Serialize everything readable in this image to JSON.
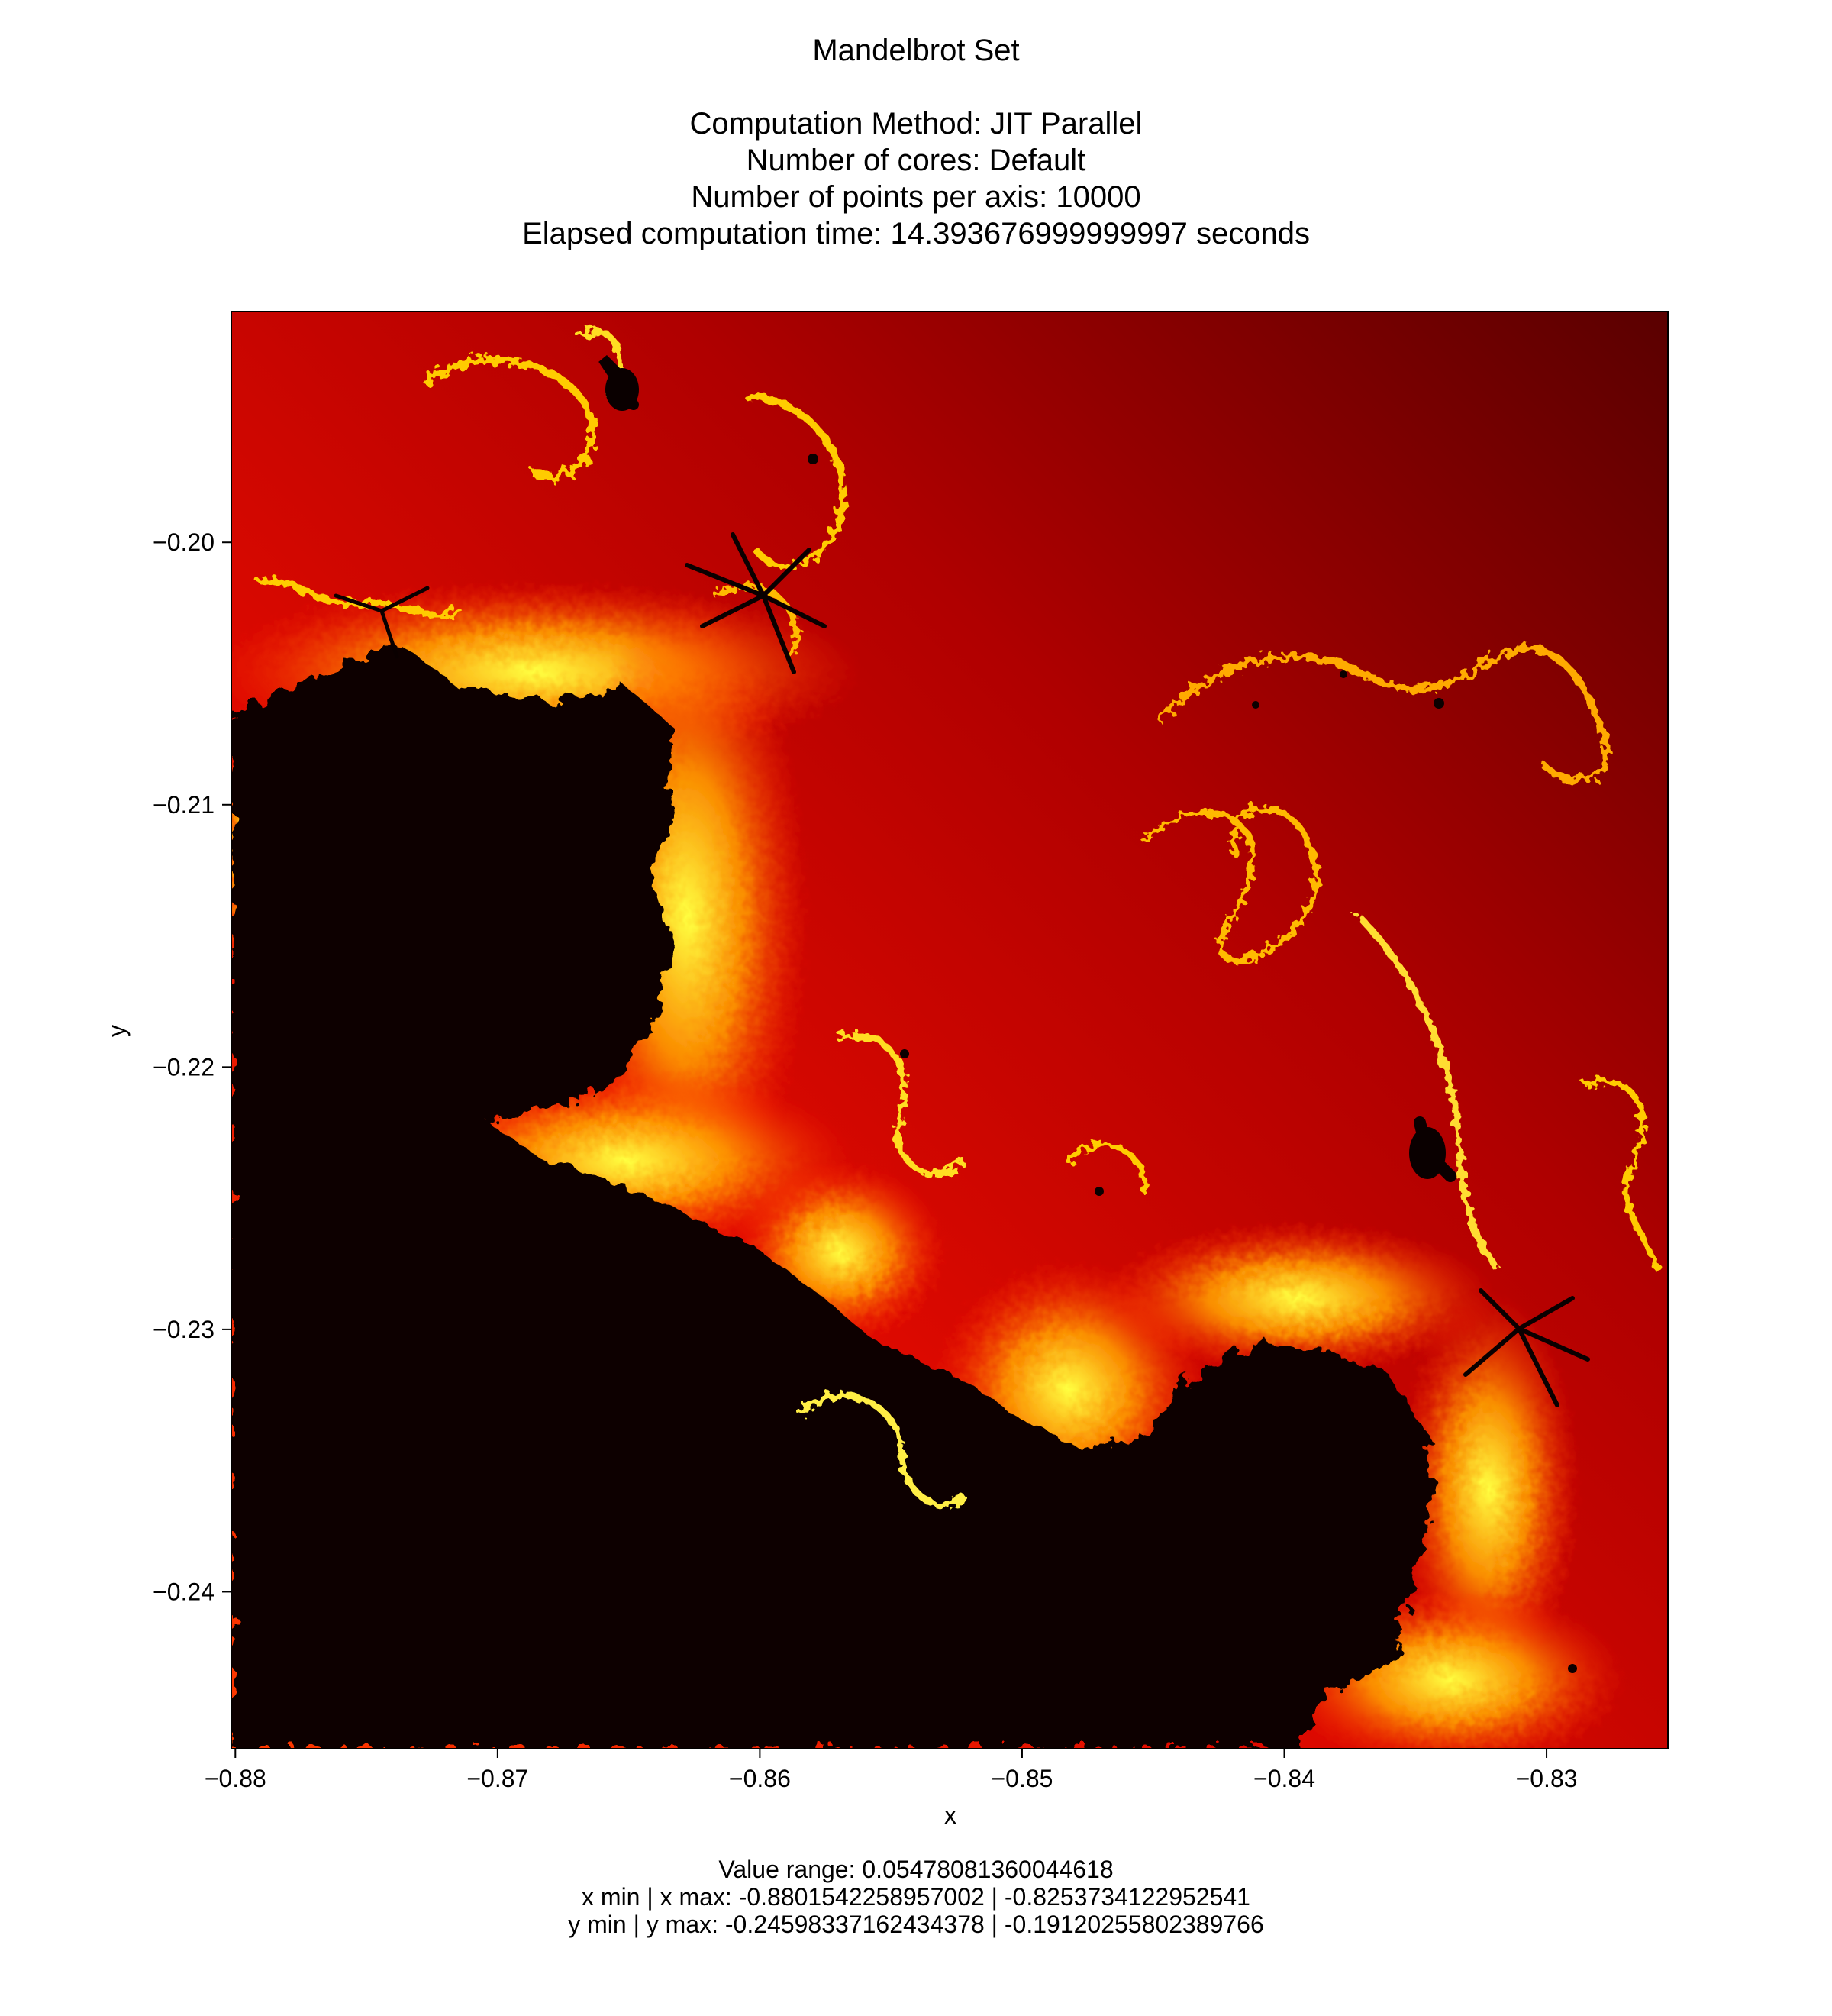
{
  "chart_data": {
    "type": "heatmap",
    "title": "Mandelbrot Set",
    "subtitle_lines": [
      "Computation Method: JIT Parallel",
      "Number of cores: Default",
      "Number of points per axis: 10000",
      "Elapsed computation time: 14.393676999999997 seconds"
    ],
    "xlabel": "x",
    "ylabel": "y",
    "xlim": [
      -0.8801542258957002,
      -0.8253734122952541
    ],
    "ylim": [
      -0.24598337162434378,
      -0.19120255802389766
    ],
    "x_ticks": [
      -0.88,
      -0.87,
      -0.86,
      -0.85,
      -0.84,
      -0.83
    ],
    "x_tick_labels": [
      "−0.88",
      "−0.87",
      "−0.86",
      "−0.85",
      "−0.84",
      "−0.83"
    ],
    "y_ticks": [
      -0.2,
      -0.21,
      -0.22,
      -0.23,
      -0.24
    ],
    "y_tick_labels": [
      "−0.20",
      "−0.21",
      "−0.22",
      "−0.23",
      "−0.24"
    ],
    "colormap": "hot",
    "colors": {
      "set_interior": "#0a0000",
      "low": "#5e0000",
      "mid": "#d80000",
      "high": "#ff8c00",
      "edge": "#ffff33"
    },
    "grid": false,
    "caption_lines": [
      "Value range: 0.05478081360044618",
      "x min | x max: -0.8801542258957002 | -0.8253734122952541",
      "y min | y max: -0.24598337162434378 | -0.19120255802389766"
    ]
  }
}
